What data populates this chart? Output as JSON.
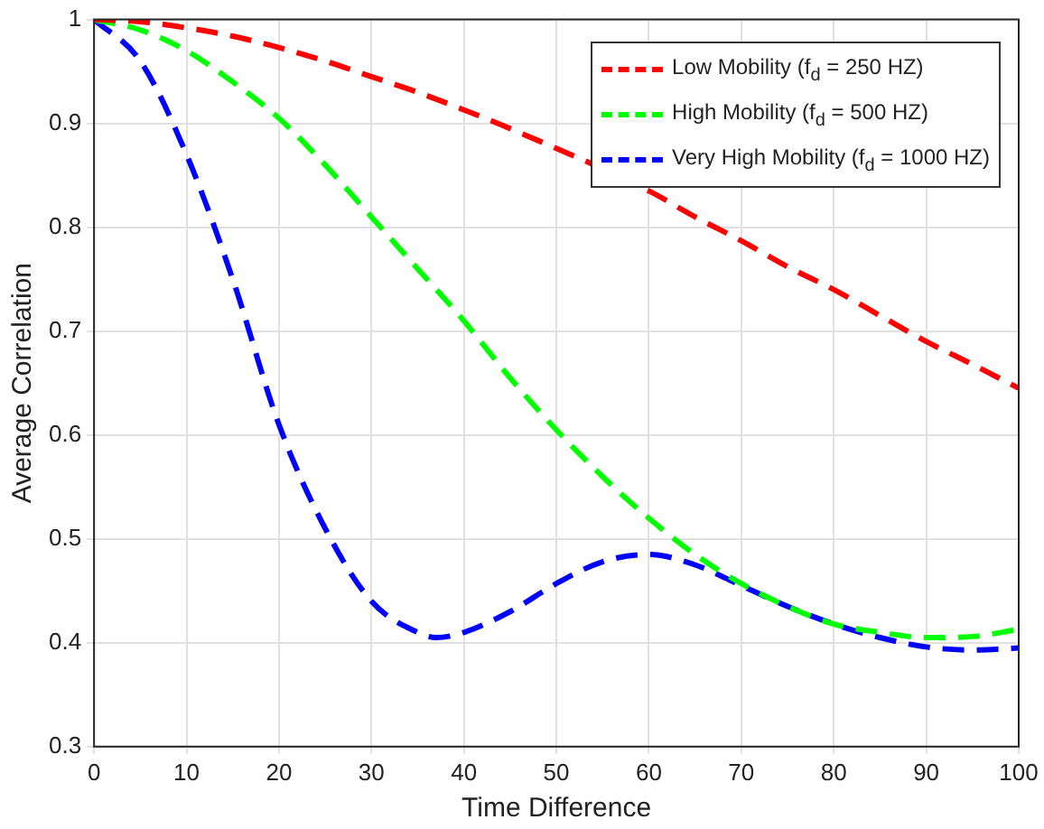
{
  "chart_data": {
    "type": "line",
    "xlabel": "Time Difference",
    "ylabel": "Average Correlation",
    "xlim": [
      0,
      100
    ],
    "xticks": [
      0,
      10,
      20,
      30,
      40,
      50,
      60,
      70,
      80,
      90,
      100
    ],
    "ylim": [
      0.3,
      1
    ],
    "yticks": [
      0.3,
      0.4,
      0.5,
      0.6,
      0.7,
      0.8,
      0.9,
      1
    ],
    "grid": true,
    "legend": "top right",
    "line_style": "dashed",
    "marker": "none",
    "series": [
      {
        "name": "Low Mobility (f$_{d}$ = 250 HZ)",
        "color": "#ff0000",
        "x": [
          0,
          5,
          10,
          15,
          20,
          25,
          30,
          35,
          40,
          45,
          50,
          55,
          60,
          65,
          70,
          75,
          80,
          85,
          90,
          95,
          100
        ],
        "values": [
          1,
          0.998,
          0.992,
          0.984,
          0.973,
          0.96,
          0.945,
          0.93,
          0.913,
          0.895,
          null,
          null,
          0.835,
          0.81,
          0.787,
          0.762,
          0.74,
          0.715,
          0.69,
          0.668,
          0.645
        ]
      },
      {
        "name": "High Mobility (f$_{d}$ = 500 HZ)",
        "color": "#00ff00",
        "x": [
          0,
          5,
          10,
          15,
          20,
          25,
          30,
          35,
          40,
          45,
          50,
          55,
          60,
          65,
          70,
          75,
          80,
          85,
          90,
          95,
          100
        ],
        "values": [
          1,
          0.99,
          0.97,
          0.94,
          0.905,
          0.86,
          0.81,
          0.76,
          0.71,
          0.655,
          0.605,
          0.56,
          0.52,
          0.485,
          0.457,
          0.435,
          0.418,
          0.41,
          0.405,
          0.406,
          0.413
        ]
      },
      {
        "name": "Very High Mobility (f$_{d}$ = 1000 HZ)",
        "color": "#0000ff",
        "x": [
          0,
          5,
          10,
          15,
          20,
          25,
          30,
          35,
          37,
          40,
          45,
          50,
          55,
          60,
          65,
          70,
          75,
          80,
          85,
          90,
          95,
          100
        ],
        "values": [
          1,
          0.96,
          0.87,
          0.75,
          0.61,
          0.51,
          0.44,
          0.41,
          0.405,
          0.41,
          0.43,
          0.457,
          0.478,
          0.485,
          0.475,
          0.455,
          0.435,
          0.418,
          0.405,
          0.396,
          0.393,
          0.395
        ]
      }
    ]
  }
}
